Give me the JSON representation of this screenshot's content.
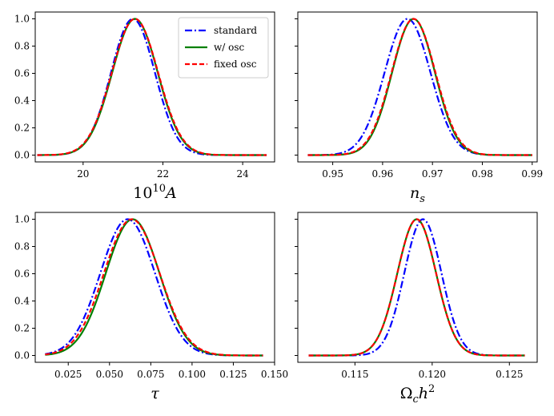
{
  "colors": {
    "standard": "#0000ff",
    "w_osc": "#008000",
    "fixed_osc": "#ff0000"
  },
  "legend": {
    "entries": [
      {
        "key": "standard",
        "label": "standard"
      },
      {
        "key": "w_osc",
        "label": "w/ osc"
      },
      {
        "key": "fixed_osc",
        "label": "fixed osc"
      }
    ]
  },
  "chart_data": [
    {
      "type": "line",
      "xlabel": "10^{10}A",
      "ylabel": "",
      "xlim": [
        18.8,
        24.8
      ],
      "ylim": [
        -0.05,
        1.05
      ],
      "xticks": [
        20,
        22,
        24
      ],
      "xtick_labels": [
        "20",
        "22",
        "24"
      ],
      "yticks": [
        0.0,
        0.2,
        0.4,
        0.6,
        0.8,
        1.0
      ],
      "ytick_labels": [
        "0.0",
        "0.2",
        "0.4",
        "0.6",
        "0.8",
        "1.0"
      ],
      "legend": true,
      "x_range": [
        18.85,
        24.6
      ],
      "series": [
        {
          "name": "standard",
          "style": "dashdot",
          "peak": 21.25,
          "sigma": 0.55
        },
        {
          "name": "w/ osc",
          "style": "solid",
          "peak": 21.3,
          "sigma": 0.57
        },
        {
          "name": "fixed osc",
          "style": "dashed",
          "peak": 21.3,
          "sigma": 0.58
        }
      ]
    },
    {
      "type": "line",
      "xlabel": "n_s",
      "ylabel": "",
      "xlim": [
        0.943,
        0.991
      ],
      "ylim": [
        -0.05,
        1.05
      ],
      "xticks": [
        0.95,
        0.96,
        0.97,
        0.98,
        0.99
      ],
      "xtick_labels": [
        "0.95",
        "0.96",
        "0.97",
        "0.98",
        "0.99"
      ],
      "yticks": [
        0.0,
        0.2,
        0.4,
        0.6,
        0.8,
        1.0
      ],
      "ytick_labels": [],
      "legend": false,
      "x_range": [
        0.945,
        0.99
      ],
      "series": [
        {
          "name": "standard",
          "style": "dashdot",
          "peak": 0.965,
          "sigma": 0.0046
        },
        {
          "name": "w/ osc",
          "style": "solid",
          "peak": 0.9662,
          "sigma": 0.0043
        },
        {
          "name": "fixed osc",
          "style": "dashed",
          "peak": 0.9662,
          "sigma": 0.0044
        }
      ]
    },
    {
      "type": "line",
      "xlabel": "τ",
      "ylabel": "",
      "xlim": [
        0.005,
        0.15
      ],
      "ylim": [
        -0.05,
        1.05
      ],
      "xticks": [
        0.025,
        0.05,
        0.075,
        0.1,
        0.125,
        0.15
      ],
      "xtick_labels": [
        "0.025",
        "0.050",
        "0.075",
        "0.100",
        "0.125",
        "0.150"
      ],
      "yticks": [
        0.0,
        0.2,
        0.4,
        0.6,
        0.8,
        1.0
      ],
      "ytick_labels": [
        "0.0",
        "0.2",
        "0.4",
        "0.6",
        "0.8",
        "1.0"
      ],
      "legend": false,
      "x_range": [
        0.011,
        0.143
      ],
      "series": [
        {
          "name": "standard",
          "style": "dashdot",
          "peak": 0.061,
          "sigma": 0.0165
        },
        {
          "name": "w/ osc",
          "style": "solid",
          "peak": 0.064,
          "sigma": 0.0162
        },
        {
          "name": "fixed osc",
          "style": "dashed",
          "peak": 0.0635,
          "sigma": 0.0168
        }
      ]
    },
    {
      "type": "line",
      "xlabel": "Ω_c h^2",
      "ylabel": "",
      "xlim": [
        0.1113,
        0.1268
      ],
      "ylim": [
        -0.05,
        1.05
      ],
      "xticks": [
        0.115,
        0.12,
        0.125
      ],
      "xtick_labels": [
        "0.115",
        "0.120",
        "0.125"
      ],
      "yticks": [
        0.0,
        0.2,
        0.4,
        0.6,
        0.8,
        1.0
      ],
      "ytick_labels": [],
      "legend": false,
      "x_range": [
        0.112,
        0.126
      ],
      "series": [
        {
          "name": "standard",
          "style": "dashdot",
          "peak": 0.1194,
          "sigma": 0.0012
        },
        {
          "name": "w/ osc",
          "style": "solid",
          "peak": 0.119,
          "sigma": 0.00125
        },
        {
          "name": "fixed osc",
          "style": "dashed",
          "peak": 0.119,
          "sigma": 0.00125
        }
      ]
    }
  ]
}
